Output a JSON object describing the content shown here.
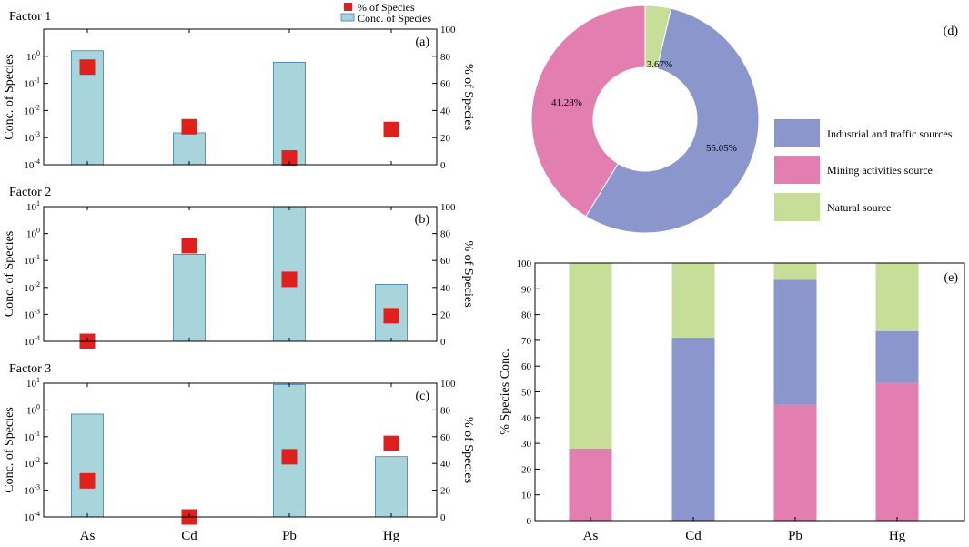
{
  "chart_data": [
    {
      "panel": "a",
      "type": "bar+scatter",
      "title": "Factor 1",
      "categories": [
        "As",
        "Cd",
        "Pb",
        "Hg"
      ],
      "ylabel": "Conc. of Species",
      "y2label": "% of Species",
      "yscale": "log",
      "ylim": [
        0.0001,
        10
      ],
      "ytick_exponents": [
        -4,
        -3,
        -2,
        -1,
        0
      ],
      "y2lim": [
        0,
        100
      ],
      "y2ticks": [
        0,
        20,
        40,
        60,
        80,
        100
      ],
      "conc_values": [
        1.6,
        0.0015,
        0.6,
        null
      ],
      "percent_values": [
        72,
        28,
        5,
        26
      ],
      "legend": [
        "% of Species",
        "Conc. of Species"
      ]
    },
    {
      "panel": "b",
      "type": "bar+scatter",
      "title": "Factor 2",
      "categories": [
        "As",
        "Cd",
        "Pb",
        "Hg"
      ],
      "ylabel": "Conc. of Species",
      "y2label": "% of Species",
      "yscale": "log",
      "ylim": [
        0.0001,
        10
      ],
      "ytick_exponents": [
        -4,
        -3,
        -2,
        -1,
        0,
        1
      ],
      "y2lim": [
        0,
        100
      ],
      "y2ticks": [
        0,
        20,
        40,
        60,
        80,
        100
      ],
      "conc_values": [
        null,
        0.17,
        10,
        0.013
      ],
      "percent_values": [
        0,
        71,
        46,
        19
      ]
    },
    {
      "panel": "c",
      "type": "bar+scatter",
      "title": "Factor 3",
      "categories": [
        "As",
        "Cd",
        "Pb",
        "Hg"
      ],
      "ylabel": "Conc. of Species",
      "y2label": "% of Species",
      "yscale": "log",
      "ylim": [
        0.0001,
        10
      ],
      "ytick_exponents": [
        -4,
        -3,
        -2,
        -1,
        0,
        1
      ],
      "y2lim": [
        0,
        100
      ],
      "y2ticks": [
        0,
        20,
        40,
        60,
        80,
        100
      ],
      "conc_values": [
        0.7,
        null,
        9,
        0.018
      ],
      "percent_values": [
        27,
        0,
        45,
        55
      ]
    },
    {
      "panel": "d",
      "type": "pie",
      "donut": true,
      "labels": [
        "Industrial and traffic sources",
        "Mining activities source",
        "Natural source"
      ],
      "values": [
        55.05,
        41.28,
        3.67
      ],
      "value_labels": [
        "55.05%",
        "41.28%",
        "3.67%"
      ],
      "colors": [
        "#8b97cc",
        "#e37fb0",
        "#c6de98"
      ]
    },
    {
      "panel": "e",
      "type": "bar",
      "stacked": true,
      "categories": [
        "As",
        "Cd",
        "Pb",
        "Hg"
      ],
      "ylabel": "% Species Conc.",
      "ylim": [
        0,
        100
      ],
      "yticks": [
        0,
        10,
        20,
        30,
        40,
        50,
        60,
        70,
        80,
        90,
        100
      ],
      "series": [
        {
          "name": "Mining activities source",
          "values": [
            28,
            0,
            45,
            53.5
          ]
        },
        {
          "name": "Industrial and traffic sources",
          "values": [
            0,
            71,
            48.5,
            20
          ]
        },
        {
          "name": "Natural source",
          "values": [
            72,
            29,
            6.5,
            26.5
          ]
        }
      ]
    }
  ],
  "colors": {
    "bar_fill": "#a8d5dc",
    "bar_stroke": "#3d7fb0",
    "marker": "#e0201c",
    "axis": "#000000",
    "industrial": "#8b97cc",
    "mining": "#e37fb0",
    "natural": "#c6de98"
  }
}
